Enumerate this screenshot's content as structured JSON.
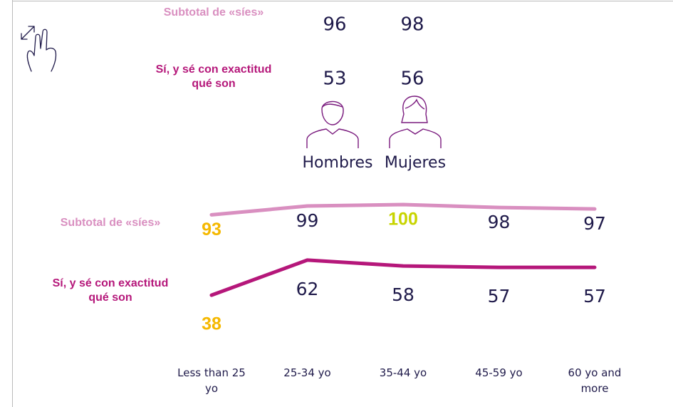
{
  "gender": {
    "rows": [
      "Subtotal de «síes»",
      "Sí, y sé con exactitud qué son"
    ],
    "columns": [
      {
        "name": "Hombres",
        "values": [
          96,
          53
        ]
      },
      {
        "name": "Mujeres",
        "values": [
          98,
          56
        ]
      }
    ]
  },
  "chart_data": {
    "type": "line",
    "categories": [
      "Less than 25 yo",
      "25-34 yo",
      "35-44 yo",
      "45-59 yo",
      "60 yo and more"
    ],
    "ylim": [
      0,
      100
    ],
    "series": [
      {
        "name": "Subtotal de «síes»",
        "color": "#d98fc0",
        "values": [
          93,
          99,
          100,
          98,
          97
        ],
        "value_label_colors": [
          "#f5b800",
          null,
          "#c8d400",
          null,
          null
        ]
      },
      {
        "name": "Sí, y sé con exactitud qué son",
        "color": "#b5177a",
        "values": [
          38,
          62,
          58,
          57,
          57
        ],
        "value_label_colors": [
          "#f5b800",
          null,
          null,
          null,
          null
        ]
      }
    ]
  }
}
